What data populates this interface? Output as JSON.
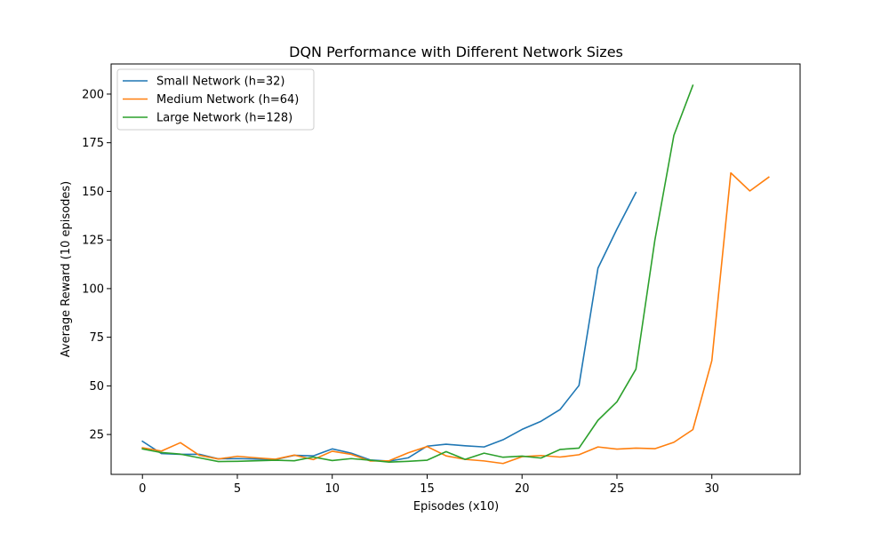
{
  "chart_data": {
    "type": "line",
    "title": "DQN Performance with Different Network Sizes",
    "xlabel": "Episodes (x10)",
    "ylabel": "Average Reward (10 episodes)",
    "xlim": [
      -1.65,
      34.65
    ],
    "ylim": [
      4.5,
      215.5
    ],
    "xticks": [
      0,
      5,
      10,
      15,
      20,
      25,
      30
    ],
    "yticks": [
      25,
      50,
      75,
      100,
      125,
      150,
      175,
      200
    ],
    "grid": false,
    "legend_position": "top-left",
    "series": [
      {
        "name": "Small Network (h=32)",
        "color": "#1f77b4",
        "x": [
          0,
          1,
          2,
          3,
          4,
          5,
          6,
          7,
          8,
          9,
          10,
          11,
          12,
          13,
          14,
          15,
          16,
          17,
          18,
          19,
          20,
          21,
          22,
          23,
          24,
          25,
          26
        ],
        "values": [
          21.5,
          15.2,
          14.8,
          14.8,
          12.5,
          12.6,
          12.4,
          12.1,
          14.3,
          14,
          17.6,
          15.4,
          11.9,
          11.3,
          13,
          19,
          20,
          19.2,
          18.6,
          22.3,
          27.6,
          31.8,
          37.8,
          50.2,
          110.5,
          130.6,
          149.4
        ]
      },
      {
        "name": "Medium Network (h=64)",
        "color": "#ff7f0e",
        "x": [
          0,
          1,
          2,
          3,
          4,
          5,
          6,
          7,
          8,
          9,
          10,
          11,
          12,
          13,
          14,
          15,
          16,
          17,
          18,
          19,
          20,
          21,
          22,
          23,
          24,
          25,
          26,
          27,
          28,
          29,
          30,
          31,
          32,
          33
        ],
        "values": [
          18.2,
          16.5,
          20.8,
          14.3,
          12.4,
          13.8,
          13,
          12.3,
          14.4,
          12.1,
          16.4,
          14.8,
          11.4,
          11.5,
          15.6,
          18.8,
          14,
          12.2,
          11.4,
          10.1,
          13.6,
          14.2,
          13.4,
          14.6,
          18.6,
          17.5,
          18,
          17.7,
          21,
          27.5,
          63,
          159.5,
          150.2,
          157.3
        ]
      },
      {
        "name": "Large Network (h=128)",
        "color": "#2ca02c",
        "x": [
          0,
          1,
          2,
          3,
          4,
          5,
          6,
          7,
          8,
          9,
          10,
          11,
          12,
          13,
          14,
          15,
          16,
          17,
          18,
          19,
          20,
          21,
          22,
          23,
          24,
          25,
          26,
          27,
          28,
          29
        ],
        "values": [
          17.6,
          15.7,
          14.9,
          13,
          11.1,
          11.2,
          11.5,
          11.8,
          11.5,
          13.4,
          11.6,
          12.6,
          11.8,
          10.8,
          11.2,
          11.8,
          16.2,
          12.2,
          15.4,
          13.3,
          13.9,
          12.9,
          17.3,
          18,
          32.3,
          41.8,
          58.6,
          125,
          178.8,
          204.5
        ]
      }
    ]
  }
}
